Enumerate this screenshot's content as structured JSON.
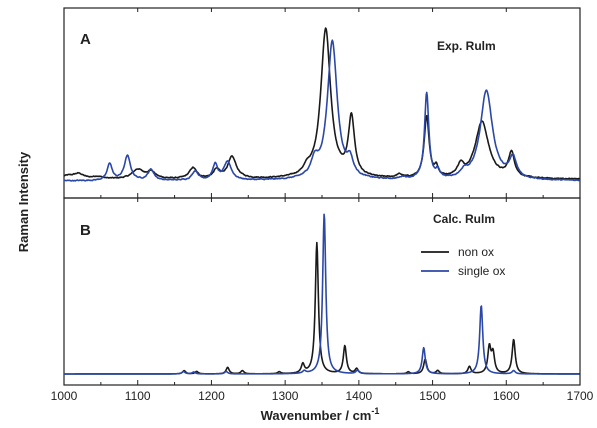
{
  "chart_data": {
    "type": "line",
    "xlabel": "Wavenumber / cm",
    "xlabel_superscript": "-1",
    "ylabel": "Raman Intensity",
    "xlim": [
      1000,
      1700
    ],
    "ylim": [
      0,
      1
    ],
    "x_ticks": [
      "1000",
      "1100",
      "1200",
      "1300",
      "1400",
      "1500",
      "1600",
      "1700"
    ],
    "colors": {
      "non ox": "#1a1a1a",
      "single ox": "#2b48a8"
    },
    "legend": {
      "panel": "B",
      "placement": "right",
      "entries": [
        "non ox",
        "single ox"
      ]
    },
    "panels": [
      {
        "id": "A",
        "letter": "A",
        "title": "Exp. Rulm",
        "kind": "experimental",
        "series": [
          {
            "name": "non ox",
            "color": "#1a1a1a",
            "baseline": 0.03,
            "noise": 0.006,
            "peaks": [
              {
                "x": 1005,
                "h": 0.02,
                "w": 12
              },
              {
                "x": 1020,
                "h": 0.03,
                "w": 8
              },
              {
                "x": 1045,
                "h": 0.015,
                "w": 8
              },
              {
                "x": 1100,
                "h": 0.06,
                "w": 9
              },
              {
                "x": 1118,
                "h": 0.045,
                "w": 7
              },
              {
                "x": 1175,
                "h": 0.07,
                "w": 6
              },
              {
                "x": 1207,
                "h": 0.055,
                "w": 5
              },
              {
                "x": 1228,
                "h": 0.14,
                "w": 7
              },
              {
                "x": 1330,
                "h": 0.04,
                "w": 6
              },
              {
                "x": 1355,
                "h": 0.97,
                "w": 8
              },
              {
                "x": 1390,
                "h": 0.38,
                "w": 5
              },
              {
                "x": 1455,
                "h": 0.02,
                "w": 5
              },
              {
                "x": 1492,
                "h": 0.4,
                "w": 4
              },
              {
                "x": 1505,
                "h": 0.06,
                "w": 3
              },
              {
                "x": 1538,
                "h": 0.07,
                "w": 5
              },
              {
                "x": 1567,
                "h": 0.37,
                "w": 11
              },
              {
                "x": 1607,
                "h": 0.16,
                "w": 5
              }
            ]
          },
          {
            "name": "single ox",
            "color": "#2b48a8",
            "baseline": 0.02,
            "noise": 0.006,
            "peaks": [
              {
                "x": 1062,
                "h": 0.11,
                "w": 4
              },
              {
                "x": 1086,
                "h": 0.16,
                "w": 5
              },
              {
                "x": 1118,
                "h": 0.07,
                "w": 5
              },
              {
                "x": 1178,
                "h": 0.06,
                "w": 5
              },
              {
                "x": 1205,
                "h": 0.1,
                "w": 4
              },
              {
                "x": 1222,
                "h": 0.12,
                "w": 6
              },
              {
                "x": 1340,
                "h": 0.1,
                "w": 6
              },
              {
                "x": 1364,
                "h": 0.9,
                "w": 8
              },
              {
                "x": 1388,
                "h": 0.1,
                "w": 5
              },
              {
                "x": 1460,
                "h": 0.015,
                "w": 5
              },
              {
                "x": 1492,
                "h": 0.56,
                "w": 3.5
              },
              {
                "x": 1507,
                "h": 0.05,
                "w": 3
              },
              {
                "x": 1543,
                "h": 0.04,
                "w": 5
              },
              {
                "x": 1573,
                "h": 0.58,
                "w": 10
              },
              {
                "x": 1609,
                "h": 0.13,
                "w": 6
              }
            ]
          }
        ]
      },
      {
        "id": "B",
        "letter": "B",
        "title": "Calc. Rulm",
        "kind": "calculated",
        "series": [
          {
            "name": "non ox",
            "color": "#1a1a1a",
            "baseline": 0.0,
            "noise": 0,
            "peaks": [
              {
                "x": 1163,
                "h": 0.02,
                "w": 2.5
              },
              {
                "x": 1180,
                "h": 0.015,
                "w": 2.5
              },
              {
                "x": 1222,
                "h": 0.04,
                "w": 2.5
              },
              {
                "x": 1242,
                "h": 0.02,
                "w": 2.5
              },
              {
                "x": 1292,
                "h": 0.012,
                "w": 2.5
              },
              {
                "x": 1324,
                "h": 0.055,
                "w": 2.5
              },
              {
                "x": 1343,
                "h": 0.8,
                "w": 2.5
              },
              {
                "x": 1381,
                "h": 0.17,
                "w": 2.5
              },
              {
                "x": 1397,
                "h": 0.03,
                "w": 2.5
              },
              {
                "x": 1467,
                "h": 0.012,
                "w": 2.5
              },
              {
                "x": 1490,
                "h": 0.09,
                "w": 2.5
              },
              {
                "x": 1507,
                "h": 0.02,
                "w": 2.5
              },
              {
                "x": 1550,
                "h": 0.045,
                "w": 2.5
              },
              {
                "x": 1577,
                "h": 0.16,
                "w": 2.5
              },
              {
                "x": 1582,
                "h": 0.12,
                "w": 2.5
              },
              {
                "x": 1610,
                "h": 0.21,
                "w": 2.5
              }
            ]
          },
          {
            "name": "single ox",
            "color": "#2b48a8",
            "baseline": 0.0,
            "noise": 0,
            "peaks": [
              {
                "x": 1162,
                "h": 0.015,
                "w": 2.5
              },
              {
                "x": 1176,
                "h": 0.012,
                "w": 2.5
              },
              {
                "x": 1220,
                "h": 0.015,
                "w": 2.5
              },
              {
                "x": 1326,
                "h": 0.015,
                "w": 2.5
              },
              {
                "x": 1353,
                "h": 0.98,
                "w": 2.5
              },
              {
                "x": 1398,
                "h": 0.02,
                "w": 2.5
              },
              {
                "x": 1488,
                "h": 0.16,
                "w": 2.5
              },
              {
                "x": 1566,
                "h": 0.42,
                "w": 2.5
              },
              {
                "x": 1610,
                "h": 0.02,
                "w": 2.5
              }
            ]
          }
        ]
      }
    ]
  }
}
